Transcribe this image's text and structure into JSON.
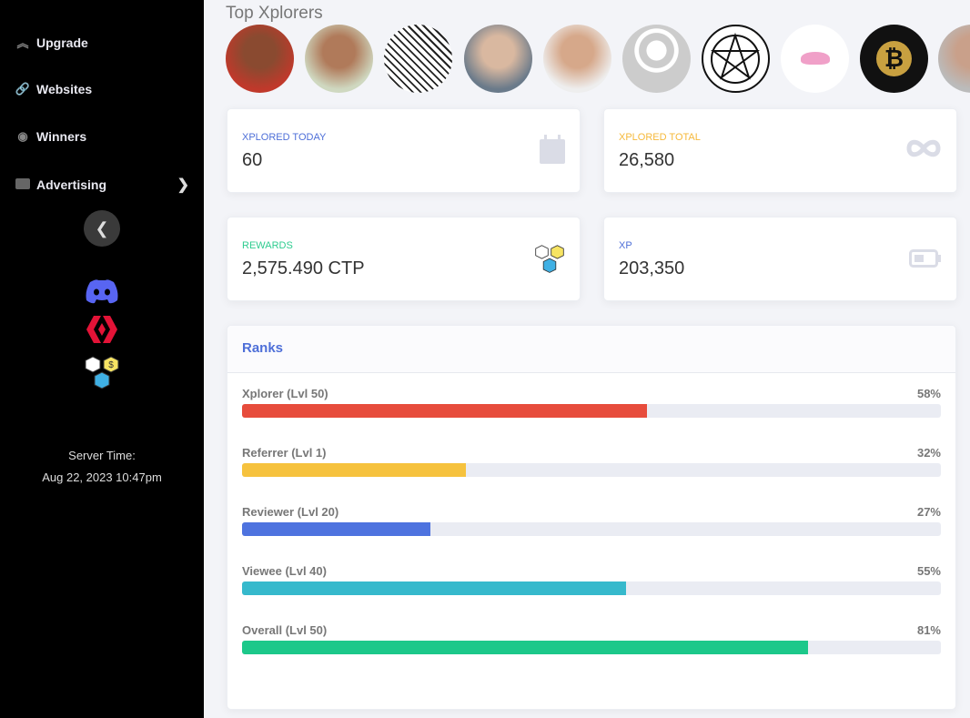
{
  "sidebar": {
    "items": [
      {
        "label": "Upgrade",
        "icon": "double-chevron-up-icon"
      },
      {
        "label": "Websites",
        "icon": "link-icon"
      },
      {
        "label": "Winners",
        "icon": "award-icon"
      },
      {
        "label": "Advertising",
        "icon": "ad-icon"
      }
    ],
    "server_time_label": "Server Time:",
    "server_time": "Aug 22, 2023 10:47pm"
  },
  "main": {
    "top_title": "Top Xplorers",
    "stats": [
      {
        "label": "XPLORED TODAY",
        "value": "60",
        "color": "#4e6fd8"
      },
      {
        "label": "XPLORED TOTAL",
        "value": "26,580",
        "color": "#f6b93b"
      },
      {
        "label": "REWARDS",
        "value": "2,575.490 CTP",
        "color": "#2ecc8f"
      },
      {
        "label": "XP",
        "value": "203,350",
        "color": "#4e6fd8"
      }
    ],
    "ranks": {
      "title": "Ranks",
      "items": [
        {
          "name": "Xplorer (Lvl 50)",
          "pct_label": "58%",
          "pct": 58,
          "color": "#e74c3c"
        },
        {
          "name": "Referrer (Lvl 1)",
          "pct_label": "32%",
          "pct": 32,
          "color": "#f6c23e"
        },
        {
          "name": "Reviewer (Lvl 20)",
          "pct_label": "27%",
          "pct": 27,
          "color": "#4e73df"
        },
        {
          "name": "Viewee (Lvl 40)",
          "pct_label": "55%",
          "pct": 55,
          "color": "#36b9cc"
        },
        {
          "name": "Overall (Lvl 50)",
          "pct_label": "81%",
          "pct": 81,
          "color": "#1cc88a"
        }
      ]
    }
  }
}
